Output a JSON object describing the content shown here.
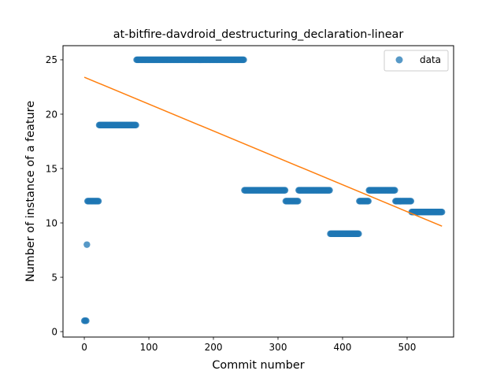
{
  "chart_data": {
    "type": "scatter",
    "title": "at-bitfire-davdroid_destructuring_declaration-linear",
    "xlabel": "Commit number",
    "ylabel": "Number of instance of a feature",
    "xlim": [
      -33,
      572
    ],
    "ylim": [
      -0.5,
      26.3
    ],
    "xticks": [
      0,
      100,
      200,
      300,
      400,
      500
    ],
    "yticks": [
      0,
      5,
      10,
      15,
      20,
      25
    ],
    "grid": false,
    "legend": {
      "position": "top-right",
      "entries": [
        "data"
      ]
    },
    "colors": {
      "points": "#1f77b4",
      "fit": "#ff7f0e"
    },
    "series": [
      {
        "name": "data",
        "kind": "scatter",
        "segments": [
          {
            "x_start": 0,
            "x_end": 3,
            "y": 1
          },
          {
            "x_start": 4,
            "x_end": 4,
            "y": 8
          },
          {
            "x_start": 5,
            "x_end": 22,
            "y": 12
          },
          {
            "x_start": 23,
            "x_end": 80,
            "y": 19
          },
          {
            "x_start": 81,
            "x_end": 247,
            "y": 25
          },
          {
            "x_start": 248,
            "x_end": 311,
            "y": 13
          },
          {
            "x_start": 312,
            "x_end": 331,
            "y": 12
          },
          {
            "x_start": 332,
            "x_end": 380,
            "y": 13
          },
          {
            "x_start": 381,
            "x_end": 425,
            "y": 9
          },
          {
            "x_start": 426,
            "x_end": 440,
            "y": 12
          },
          {
            "x_start": 441,
            "x_end": 481,
            "y": 13
          },
          {
            "x_start": 482,
            "x_end": 506,
            "y": 12
          },
          {
            "x_start": 507,
            "x_end": 554,
            "y": 11
          }
        ]
      },
      {
        "name": "",
        "kind": "line",
        "points": [
          {
            "x": 0,
            "y": 23.4
          },
          {
            "x": 554,
            "y": 9.7
          }
        ]
      }
    ]
  }
}
